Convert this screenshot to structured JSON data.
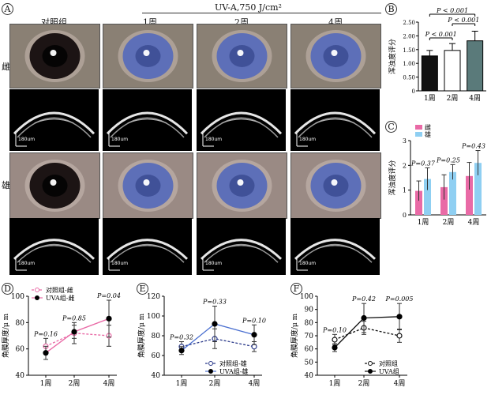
{
  "panel_labels": {
    "A": "A",
    "B": "B",
    "C": "C",
    "D": "D",
    "E": "E",
    "F": "F"
  },
  "columns": {
    "control": "对照组",
    "w1": "1周",
    "w2": "2周",
    "w4": "4周",
    "uva_header": "UV-A,750 J/cm²"
  },
  "rows": {
    "female": "雌",
    "male": "雄"
  },
  "scale_bar": "180um",
  "photo_colors": {
    "skin_female": "#8a8074",
    "skin_male": "#9a8a84",
    "normal_eye": "#1c1414",
    "cloudy_eye": "#5d6fb8",
    "pupil_glare": "#ffffff"
  },
  "chart_B": {
    "ylabel": "浑浊度评分",
    "yticks": [
      "0",
      "0.50",
      "1.00",
      "1.50",
      "2.00",
      "2.50"
    ],
    "categories": [
      "1周",
      "2周",
      "4周"
    ],
    "values": [
      1.27,
      1.47,
      1.82
    ],
    "errors": [
      0.2,
      0.25,
      0.35
    ],
    "bar_colors": [
      "#111111",
      "#ffffff",
      "#5a7a7a"
    ],
    "annotations": [
      "P < 0.001",
      "P < 0.001",
      "P < 0.001"
    ]
  },
  "chart_C": {
    "ylabel": "浑浊度评分",
    "yticks": [
      "0",
      "1",
      "2",
      "3"
    ],
    "categories": [
      "1周",
      "2周",
      "4周"
    ],
    "legend": [
      "雌",
      "雄"
    ],
    "series_colors": [
      "#e96aa6",
      "#8fcff2"
    ],
    "female": [
      0.97,
      1.12,
      1.57
    ],
    "male": [
      1.45,
      1.73,
      2.1
    ],
    "female_err": [
      0.4,
      0.5,
      0.55
    ],
    "male_err": [
      0.45,
      0.3,
      0.5
    ],
    "annotations": [
      "P=0.37",
      "P=0.25",
      "P=0.43"
    ]
  },
  "chart_D": {
    "ylabel": "角膜厚度/μ m",
    "yticks": [
      "40",
      "60",
      "80",
      "100"
    ],
    "categories": [
      "1周",
      "2周",
      "4周"
    ],
    "legend": [
      "对照组-雌",
      "UVA组-雌"
    ],
    "control": [
      62,
      72,
      70
    ],
    "uva": [
      57,
      73,
      83
    ],
    "control_err": [
      6,
      8,
      8
    ],
    "uva_err": [
      5,
      5,
      14
    ],
    "annotations": [
      "P=0.16",
      "P=0.85",
      "P=0.04"
    ]
  },
  "chart_E": {
    "ylabel": "角膜厚度/μ m",
    "yticks": [
      "40",
      "60",
      "80",
      "100",
      "120"
    ],
    "categories": [
      "1周",
      "2周",
      "4周"
    ],
    "legend": [
      "对照组-雄",
      "UVA组-雄"
    ],
    "control": [
      69,
      77,
      69
    ],
    "uva": [
      65,
      92,
      81
    ],
    "control_err": [
      5,
      10,
      5
    ],
    "uva_err": [
      4,
      18,
      10
    ],
    "annotations": [
      "P=0.32",
      "P=0.33",
      "P=0.10"
    ]
  },
  "chart_F": {
    "ylabel": "角膜厚度/μ m",
    "yticks": [
      "40",
      "50",
      "60",
      "70",
      "80",
      "90",
      "100"
    ],
    "categories": [
      "1周",
      "2周",
      "4周"
    ],
    "legend": [
      "对照组",
      "UVA组"
    ],
    "control": [
      67,
      76,
      70
    ],
    "uva": [
      61,
      83.5,
      84.5
    ],
    "control_err": [
      4,
      5,
      5
    ],
    "uva_err": [
      3,
      11,
      10
    ],
    "annotations": [
      "P=0.10",
      "P=0.42",
      "P=0.005"
    ]
  },
  "chart_data": [
    {
      "type": "bar",
      "title": "",
      "ylabel": "浑浊度评分",
      "categories": [
        "1周",
        "2周",
        "4周"
      ],
      "values": [
        1.27,
        1.47,
        1.82
      ],
      "ylim": [
        0,
        2.5
      ]
    },
    {
      "type": "bar",
      "title": "",
      "ylabel": "浑浊度评分",
      "categories": [
        "1周",
        "2周",
        "4周"
      ],
      "series": [
        {
          "name": "雌",
          "values": [
            0.97,
            1.12,
            1.57
          ]
        },
        {
          "name": "雄",
          "values": [
            1.45,
            1.73,
            2.1
          ]
        }
      ],
      "ylim": [
        0,
        3
      ]
    },
    {
      "type": "line",
      "title": "",
      "ylabel": "角膜厚度/μ m",
      "categories": [
        "1周",
        "2周",
        "4周"
      ],
      "series": [
        {
          "name": "对照组-雌",
          "values": [
            62,
            72,
            70
          ]
        },
        {
          "name": "UVA组-雌",
          "values": [
            57,
            73,
            83
          ]
        }
      ],
      "ylim": [
        40,
        100
      ]
    },
    {
      "type": "line",
      "title": "",
      "ylabel": "角膜厚度/μ m",
      "categories": [
        "1周",
        "2周",
        "4周"
      ],
      "series": [
        {
          "name": "对照组-雄",
          "values": [
            69,
            77,
            69
          ]
        },
        {
          "name": "UVA组-雄",
          "values": [
            65,
            92,
            81
          ]
        }
      ],
      "ylim": [
        40,
        120
      ]
    },
    {
      "type": "line",
      "title": "",
      "ylabel": "角膜厚度/μ m",
      "categories": [
        "1周",
        "2周",
        "4周"
      ],
      "series": [
        {
          "name": "对照组",
          "values": [
            67,
            76,
            70
          ]
        },
        {
          "name": "UVA组",
          "values": [
            61,
            83.5,
            84.5
          ]
        }
      ],
      "ylim": [
        40,
        100
      ]
    }
  ]
}
